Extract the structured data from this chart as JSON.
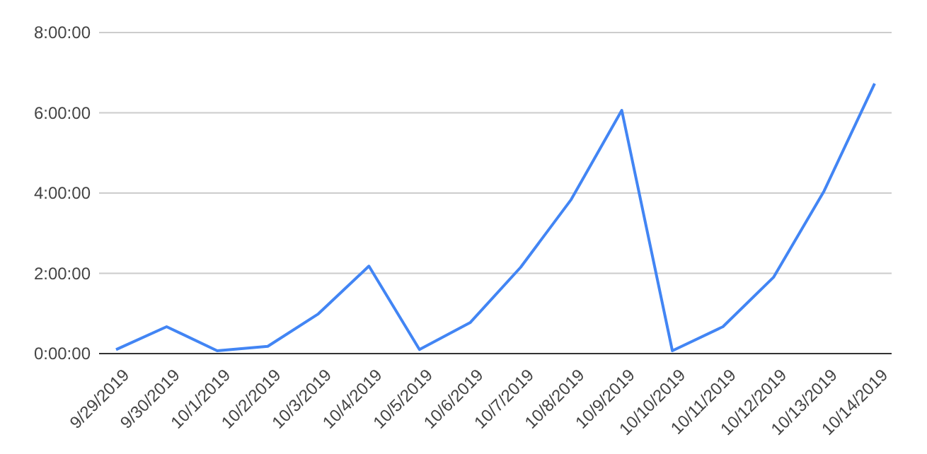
{
  "chart_data": {
    "type": "line",
    "categories": [
      "9/29/2019",
      "9/30/2019",
      "10/1/2019",
      "10/2/2019",
      "10/3/2019",
      "10/4/2019",
      "10/5/2019",
      "10/6/2019",
      "10/7/2019",
      "10/8/2019",
      "10/9/2019",
      "10/10/2019",
      "10/11/2019",
      "10/12/2019",
      "10/13/2019",
      "10/14/2019"
    ],
    "series": [
      {
        "color": "#4285f4",
        "values": [
          0.1,
          0.67,
          0.07,
          0.18,
          0.99,
          2.18,
          0.1,
          0.77,
          2.15,
          3.84,
          6.06,
          0.07,
          0.67,
          1.9,
          4.05,
          6.73
        ]
      }
    ],
    "ylim": [
      0,
      8
    ],
    "yticks": [
      {
        "value": 0,
        "label": "0:00:00"
      },
      {
        "value": 2,
        "label": "2:00:00"
      },
      {
        "value": 4,
        "label": "4:00:00"
      },
      {
        "value": 6,
        "label": "6:00:00"
      },
      {
        "value": 8,
        "label": "8:00:00"
      }
    ],
    "grid": "y",
    "marker": "none",
    "line_style": "solid"
  }
}
